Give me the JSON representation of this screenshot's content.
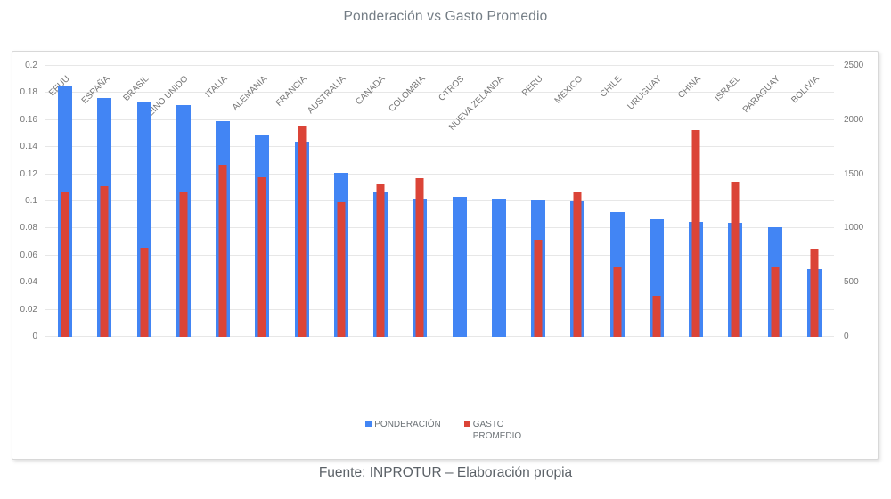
{
  "title": "Ponderación vs Gasto Promedio",
  "footer": "Fuente: INPROTUR – Elaboración propia",
  "colors": {
    "ponderacion_blue": "#4285f4",
    "gasto_red": "#db4437",
    "grid": "#e7e7e7",
    "axis_text": "#757575",
    "title_text": "#747d85",
    "footer_text": "#5b6167",
    "card_border": "#d8d8d8"
  },
  "legend": [
    {
      "label": "PONDERACIÓN",
      "color": "#4285f4"
    },
    {
      "label": "GASTO PROMEDIO",
      "color": "#db4437"
    }
  ],
  "chart_data": {
    "type": "bar",
    "title": "Ponderación vs Gasto Promedio",
    "xlabel": "",
    "ylabel_left": "",
    "ylabel_right": "",
    "grid": true,
    "legend_position": "bottom",
    "categories": [
      "EEUU",
      "ESPAÑA",
      "BRASIL",
      "REINO UNIDO",
      "ITALIA",
      "ALEMANIA",
      "FRANCIA",
      "AUSTRALIA",
      "CANADA",
      "COLOMBIA",
      "OTROS",
      "NUEVA ZELANDA",
      "PERU",
      "MEXICO",
      "CHILE",
      "URUGUAY",
      "CHINA",
      "ISRAEL",
      "PARAGUAY",
      "BOLIVIA"
    ],
    "series": [
      {
        "name": "PONDERACIÓN",
        "axis": "left",
        "color": "#4285f4",
        "values": [
          0.185,
          0.176,
          0.174,
          0.171,
          0.159,
          0.149,
          0.144,
          0.121,
          0.107,
          0.102,
          0.103,
          0.102,
          0.101,
          0.1,
          0.092,
          0.087,
          0.085,
          0.084,
          0.081,
          0.05
        ]
      },
      {
        "name": "GASTO PROMEDIO",
        "axis": "right",
        "color": "#db4437",
        "values": [
          1340,
          1390,
          825,
          1340,
          1590,
          1475,
          1950,
          1240,
          1415,
          1465,
          null,
          null,
          895,
          1330,
          640,
          380,
          1910,
          1430,
          645,
          810
        ]
      }
    ],
    "left_axis": {
      "min": 0,
      "max": 0.2,
      "ticks": [
        {
          "value": 0,
          "label": "0"
        },
        {
          "value": 0.02,
          "label": "0.02"
        },
        {
          "value": 0.04,
          "label": "0.04"
        },
        {
          "value": 0.06,
          "label": "0.06"
        },
        {
          "value": 0.08,
          "label": "0.08"
        },
        {
          "value": 0.1,
          "label": "0.1"
        },
        {
          "value": 0.12,
          "label": "0.12"
        },
        {
          "value": 0.14,
          "label": "0.14"
        },
        {
          "value": 0.16,
          "label": "0.16"
        },
        {
          "value": 0.18,
          "label": "0.18"
        },
        {
          "value": 0.2,
          "label": "0.2"
        }
      ]
    },
    "right_axis": {
      "min": 0,
      "max": 2500,
      "ticks": [
        {
          "value": 0,
          "label": "0"
        },
        {
          "value": 500,
          "label": "500"
        },
        {
          "value": 1000,
          "label": "1000"
        },
        {
          "value": 1500,
          "label": "1500"
        },
        {
          "value": 2000,
          "label": "2000"
        },
        {
          "value": 2500,
          "label": "2500"
        }
      ]
    }
  }
}
